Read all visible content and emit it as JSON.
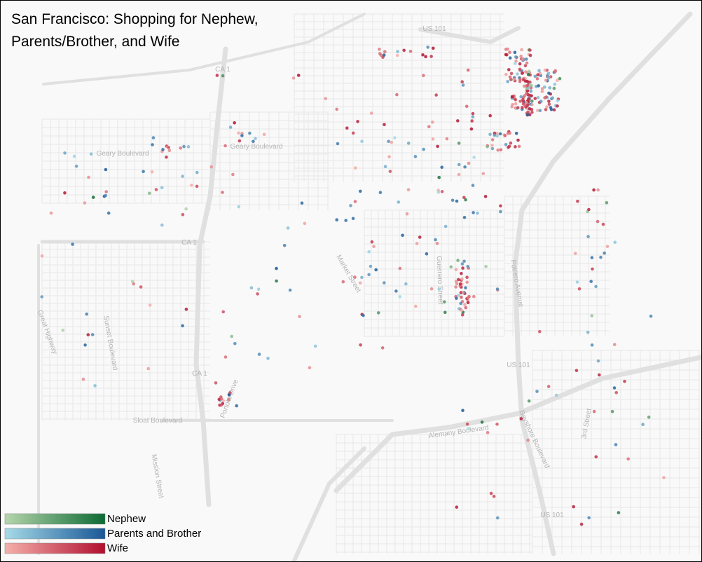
{
  "title": "San Francisco: Shopping for Nephew, Parents/Brother, and Wife",
  "legend": [
    {
      "label": "Nephew",
      "colors": [
        "#b5d6ac",
        "#0d6a34"
      ]
    },
    {
      "label": "Parents and Brother",
      "colors": [
        "#a6dbe8",
        "#1a5796"
      ]
    },
    {
      "label": "Wife",
      "colors": [
        "#f5b0ab",
        "#b10f2e"
      ]
    }
  ],
  "road_labels": [
    "US 101",
    "CA 1",
    "Geary Boulevard",
    "Geary Boulevard",
    "CA 1",
    "Great Highway",
    "Sunset Boulevard",
    "CA 1",
    "Sloat Boulevard",
    "Portola Drive",
    "Market Street",
    "Guerrero Street",
    "Potrero Avenue",
    "US 101",
    "Alemany Boulevard",
    "Bayshore Boulevard",
    "3rd Street",
    "US 101",
    "Mission Street"
  ]
}
